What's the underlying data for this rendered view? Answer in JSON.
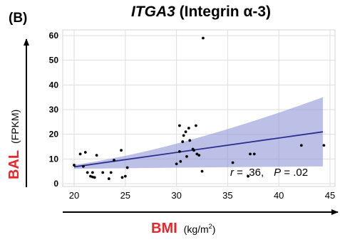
{
  "chart_data": {
    "type": "scatter",
    "panel_label": "(B)",
    "title": {
      "gene": "ITGA3",
      "rest": " (Integrin α-3)"
    },
    "xlabel": {
      "main": "BMI",
      "unit_prefix": "(kg/m",
      "unit_sup": "2",
      "unit_suffix": ")"
    },
    "ylabel": {
      "main": "BAL",
      "unit": "(FPKM)"
    },
    "xlim": [
      19,
      45
    ],
    "ylim": [
      0,
      62
    ],
    "xticks": [
      20,
      25,
      30,
      35,
      40,
      45
    ],
    "yticks": [
      0,
      10,
      20,
      30,
      40,
      50,
      60
    ],
    "grid": true,
    "point_color": "#000000",
    "line_color": "#2b2f8f",
    "band_color": "#8f94d6",
    "points": [
      {
        "x": 20.0,
        "y": 7.5
      },
      {
        "x": 20.6,
        "y": 12.0
      },
      {
        "x": 20.9,
        "y": 7.0
      },
      {
        "x": 21.1,
        "y": 12.7
      },
      {
        "x": 21.3,
        "y": 4.5
      },
      {
        "x": 21.6,
        "y": 3.0
      },
      {
        "x": 21.8,
        "y": 4.5
      },
      {
        "x": 21.8,
        "y": 2.7
      },
      {
        "x": 22.0,
        "y": 2.5
      },
      {
        "x": 22.2,
        "y": 11.5
      },
      {
        "x": 22.8,
        "y": 4.5
      },
      {
        "x": 23.4,
        "y": 2.0
      },
      {
        "x": 23.6,
        "y": 4.5
      },
      {
        "x": 23.9,
        "y": 9.5
      },
      {
        "x": 24.6,
        "y": 13.5
      },
      {
        "x": 24.7,
        "y": 2.5
      },
      {
        "x": 25.0,
        "y": 3.0
      },
      {
        "x": 25.2,
        "y": 6.5
      },
      {
        "x": 30.0,
        "y": 8.0
      },
      {
        "x": 30.3,
        "y": 23.5
      },
      {
        "x": 30.3,
        "y": 13.0
      },
      {
        "x": 30.4,
        "y": 9.0
      },
      {
        "x": 30.6,
        "y": 17.0
      },
      {
        "x": 30.7,
        "y": 19.5
      },
      {
        "x": 30.9,
        "y": 21.0
      },
      {
        "x": 31.0,
        "y": 11.0
      },
      {
        "x": 31.2,
        "y": 22.5
      },
      {
        "x": 31.3,
        "y": 17.5
      },
      {
        "x": 31.6,
        "y": 14.0
      },
      {
        "x": 31.7,
        "y": 13.5
      },
      {
        "x": 31.9,
        "y": 23.5
      },
      {
        "x": 32.0,
        "y": 12.0
      },
      {
        "x": 32.2,
        "y": 11.5
      },
      {
        "x": 32.5,
        "y": 5.0
      },
      {
        "x": 32.6,
        "y": 59.0
      },
      {
        "x": 35.5,
        "y": 8.5
      },
      {
        "x": 37.0,
        "y": 3.0
      },
      {
        "x": 37.2,
        "y": 12.0
      },
      {
        "x": 37.6,
        "y": 12.0
      },
      {
        "x": 42.2,
        "y": 15.5
      },
      {
        "x": 44.4,
        "y": 15.5
      }
    ],
    "fit": {
      "x": [
        20,
        44.3
      ],
      "y": [
        6.8,
        21.0
      ],
      "band_upper": [
        7.6,
        35.0
      ],
      "band_lower": [
        6.0,
        7.0
      ]
    },
    "annotation": {
      "r_label": "r",
      "r_value": " = .36,",
      "p_label": "P",
      "p_value": " = .02"
    }
  }
}
